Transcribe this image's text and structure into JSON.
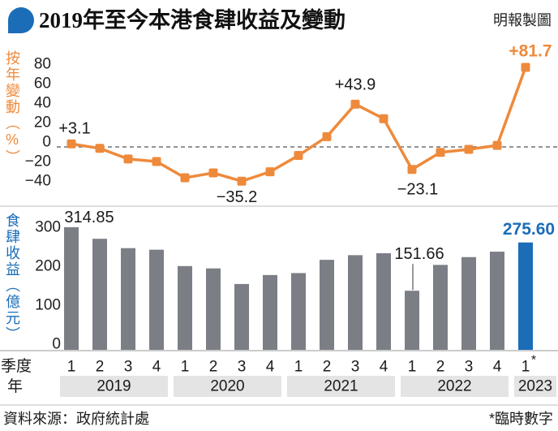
{
  "header": {
    "title": "2019年至今本港食肆收益及變動",
    "credit": "明報製圖",
    "icon": "speech-bubble-icon",
    "accent_color": "#1b6db8"
  },
  "x_axis": {
    "quarter_title": "季度",
    "year_title": "年",
    "quarters": [
      "1",
      "2",
      "3",
      "4",
      "1",
      "2",
      "3",
      "4",
      "1",
      "2",
      "3",
      "4",
      "1",
      "2",
      "3",
      "4",
      "1"
    ],
    "provisional_mark": "*",
    "provisional_index": 16,
    "years": [
      {
        "label": "2019",
        "quarter_count": 4
      },
      {
        "label": "2020",
        "quarter_count": 4
      },
      {
        "label": "2021",
        "quarter_count": 4
      },
      {
        "label": "2022",
        "quarter_count": 4
      },
      {
        "label": "2023",
        "quarter_count": 1
      }
    ]
  },
  "chart_data": [
    {
      "type": "line",
      "ylabel": "按年變動（%）",
      "values": [
        3.1,
        -1.5,
        -12.4,
        -15.0,
        -31.7,
        -26.7,
        -35.2,
        -25.5,
        -8.8,
        10.5,
        43.9,
        29.0,
        -23.1,
        -5.6,
        -2.5,
        1.6,
        81.7
      ],
      "ylim": [
        -40,
        85
      ],
      "yticks": [
        {
          "value": 80,
          "label": "80"
        },
        {
          "value": 60,
          "label": "60"
        },
        {
          "value": 40,
          "label": "40"
        },
        {
          "value": 20,
          "label": "20"
        },
        {
          "value": 0,
          "label": "0"
        },
        {
          "value": -20,
          "label": "−20"
        },
        {
          "value": -40,
          "label": "−40"
        }
      ],
      "data_labels": [
        {
          "index": 0,
          "text": "+3.1"
        },
        {
          "index": 6,
          "text": "−35.2"
        },
        {
          "index": 10,
          "text": "+43.9"
        },
        {
          "index": 12,
          "text": "−23.1"
        },
        {
          "index": 16,
          "text": "+81.7"
        }
      ],
      "highlight_index": 16,
      "color": "#ee8a3c"
    },
    {
      "type": "bar",
      "ylabel": "食肆收益（億元）",
      "values": [
        314.85,
        285,
        261,
        257,
        215,
        209,
        169,
        192,
        197,
        231,
        243,
        248,
        151.66,
        218,
        238,
        252,
        275.6
      ],
      "ylim": [
        0,
        320
      ],
      "yticks": [
        {
          "value": 300,
          "label": "300"
        },
        {
          "value": 200,
          "label": "200"
        },
        {
          "value": 100,
          "label": "100"
        },
        {
          "value": 0,
          "label": "0"
        }
      ],
      "data_labels": [
        {
          "index": 0,
          "text": "314.85"
        },
        {
          "index": 12,
          "text": "151.66"
        },
        {
          "index": 16,
          "text": "275.60"
        }
      ],
      "highlight_index": 16,
      "color": "#7b7f85",
      "highlight_color": "#1b6db8"
    }
  ],
  "footer": {
    "source": "資料來源：政府統計處",
    "note": "*臨時數字"
  }
}
